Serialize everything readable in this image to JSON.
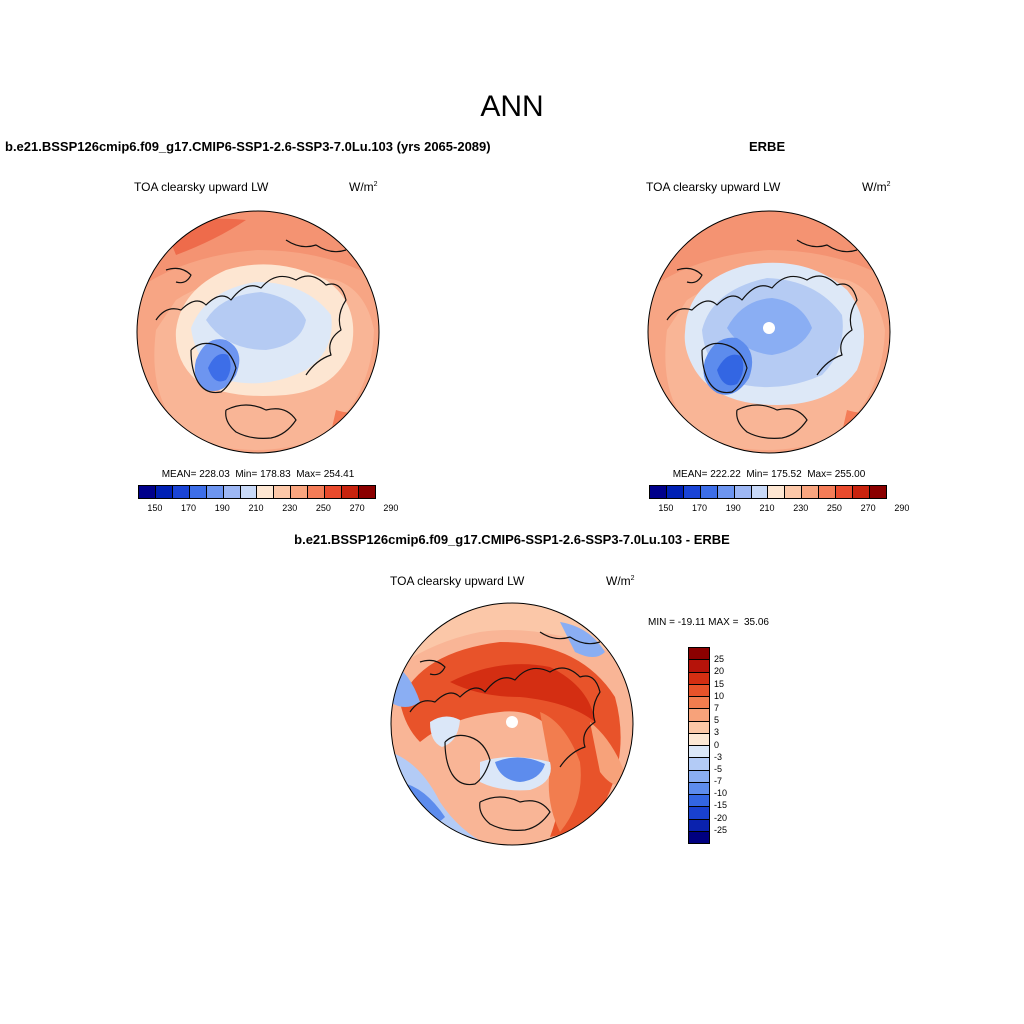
{
  "main_title": "ANN",
  "panels": {
    "model": {
      "title": "b.e21.BSSP126cmip6.f09_g17.CMIP6-SSP1-2.6-SSP3-7.0Lu.103 (yrs 2065-2089)",
      "variable": "TOA clearsky upward LW",
      "units_base": "W/m",
      "units_exp": "2",
      "stats": "MEAN= 228.03  Min= 178.83  Max= 254.41",
      "mean": 228.03,
      "min": 178.83,
      "max": 254.41
    },
    "obs": {
      "title": "ERBE",
      "variable": "TOA clearsky upward LW",
      "units_base": "W/m",
      "units_exp": "2",
      "stats": "MEAN= 222.22  Min= 175.52  Max= 255.00",
      "mean": 222.22,
      "min": 175.52,
      "max": 255.0
    },
    "diff": {
      "title": "b.e21.BSSP126cmip6.f09_g17.CMIP6-SSP1-2.6-SSP3-7.0Lu.103 - ERBE",
      "variable": "TOA clearsky upward LW",
      "units_base": "W/m",
      "units_exp": "2",
      "stats": "MIN = -19.11 MAX =  35.06",
      "min": -19.11,
      "max": 35.06
    }
  },
  "abs_colorbar": {
    "colors": [
      "#00008b",
      "#0020b4",
      "#1a44d6",
      "#3d6ee8",
      "#6d95f0",
      "#9db7f4",
      "#c8d9f8",
      "#fde6d2",
      "#fcc7a8",
      "#f9a57f",
      "#f47c57",
      "#e94a2c",
      "#c8230e",
      "#8b0000"
    ],
    "tick_labels": [
      "150",
      "170",
      "190",
      "210",
      "230",
      "250",
      "270",
      "290"
    ]
  },
  "diff_colorbar": {
    "colors": [
      "#8b0000",
      "#b5130a",
      "#d42e12",
      "#e8532a",
      "#f27d4f",
      "#f7a27a",
      "#fbc7a6",
      "#fde8d4",
      "#dbe7f8",
      "#b3cbf6",
      "#8aaef3",
      "#5d8ced",
      "#3366e3",
      "#1941d0",
      "#0a22ae",
      "#000080"
    ],
    "tick_labels": [
      "25",
      "20",
      "15",
      "10",
      "7",
      "5",
      "3",
      "0",
      "-3",
      "-5",
      "-7",
      "-10",
      "-15",
      "-20",
      "-25"
    ]
  }
}
